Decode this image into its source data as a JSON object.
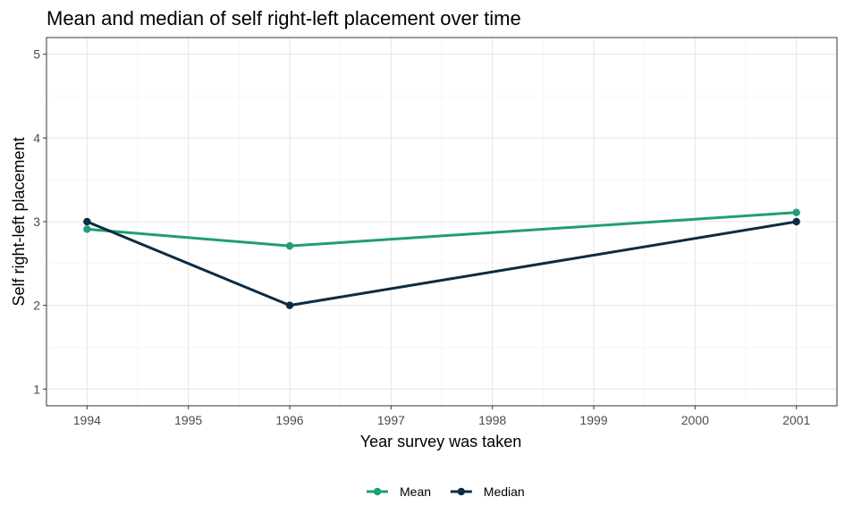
{
  "chart_data": {
    "type": "line",
    "title": "Mean and median of self right-left placement over time",
    "xlabel": "Year survey was taken",
    "ylabel": "Self right-left placement",
    "x": [
      1994,
      1996,
      2001
    ],
    "x_ticks": [
      "1994",
      "1995",
      "1996",
      "1997",
      "1998",
      "1999",
      "2000",
      "2001"
    ],
    "y_ticks": [
      "1",
      "2",
      "3",
      "4",
      "5"
    ],
    "xlim": [
      1993.6,
      2001.4
    ],
    "ylim": [
      0.8,
      5.2
    ],
    "grid": true,
    "legend_position": "bottom",
    "series": [
      {
        "name": "Mean",
        "color": "#1f9e77",
        "values": [
          2.91,
          2.71,
          3.11
        ]
      },
      {
        "name": "Median",
        "color": "#0c2c44",
        "values": [
          3,
          2,
          3
        ]
      }
    ]
  }
}
